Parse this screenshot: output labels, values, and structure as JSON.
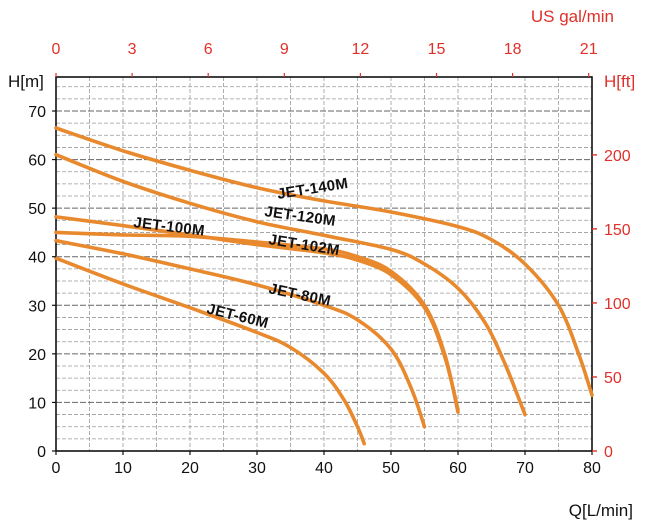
{
  "chart_data": {
    "type": "line",
    "title": "",
    "axes": {
      "bottom": {
        "label": "Q[L/min]",
        "min": 0,
        "max": 80,
        "ticks": [
          0,
          10,
          20,
          30,
          40,
          50,
          60,
          70,
          80
        ]
      },
      "left": {
        "label": "H[m]",
        "min": 0,
        "max": 77,
        "ticks": [
          0,
          10,
          20,
          30,
          40,
          50,
          60,
          70
        ]
      },
      "top": {
        "label": "US gal/min",
        "min": 0,
        "max": 21.13,
        "ticks": [
          0,
          3,
          6,
          9,
          12,
          15,
          18,
          21
        ]
      },
      "right": {
        "label": "H[ft]",
        "min": 0,
        "max": 252.6,
        "ticks": [
          0,
          50,
          100,
          150,
          200
        ]
      }
    },
    "grid": true,
    "series": [
      {
        "name": "JET-140M",
        "x": [
          0,
          10,
          20,
          30,
          40,
          50,
          60,
          65,
          70,
          75,
          78,
          80
        ],
        "y": [
          66.5,
          61.8,
          57.8,
          54.2,
          51.5,
          49.2,
          46.2,
          43.5,
          38.5,
          30,
          20,
          11.5
        ]
      },
      {
        "name": "JET-120M",
        "x": [
          0,
          10,
          20,
          30,
          40,
          50,
          55,
          60,
          64,
          67,
          70
        ],
        "y": [
          61,
          55.5,
          51,
          47.2,
          44.4,
          41.5,
          38.5,
          33.5,
          26.5,
          18,
          7.5
        ]
      },
      {
        "name": "JET-100M",
        "x": [
          0,
          10,
          20,
          30,
          40,
          45,
          50,
          55,
          58,
          60
        ],
        "y": [
          45,
          44.5,
          44.2,
          43,
          41.6,
          40,
          37,
          30,
          20,
          8
        ]
      },
      {
        "name": "JET-102M",
        "x": [
          0,
          10,
          20,
          30,
          40,
          45,
          50,
          55,
          58,
          60
        ],
        "y": [
          48.2,
          46.4,
          44.5,
          42.5,
          40.8,
          39.3,
          36.3,
          29.5,
          19.5,
          8.5
        ]
      },
      {
        "name": "JET-80M",
        "x": [
          0,
          10,
          20,
          30,
          40,
          45,
          50,
          53,
          55
        ],
        "y": [
          43.3,
          40.6,
          37.5,
          34.2,
          30,
          27,
          21,
          13,
          5
        ]
      },
      {
        "name": "JET-60M",
        "x": [
          0,
          10,
          20,
          30,
          35,
          40,
          43,
          45,
          46
        ],
        "y": [
          39.7,
          34.4,
          29.5,
          24.4,
          21.3,
          16,
          10.5,
          5,
          1.5
        ]
      }
    ],
    "curve_labels": [
      "JET-140M",
      "JET-120M",
      "JET-100M",
      "JET-102M",
      "JET-80M",
      "JET-60M"
    ],
    "line_color": "#e8892e",
    "grid_color": "#999999",
    "secondary_axis_color": "#e0302a"
  }
}
